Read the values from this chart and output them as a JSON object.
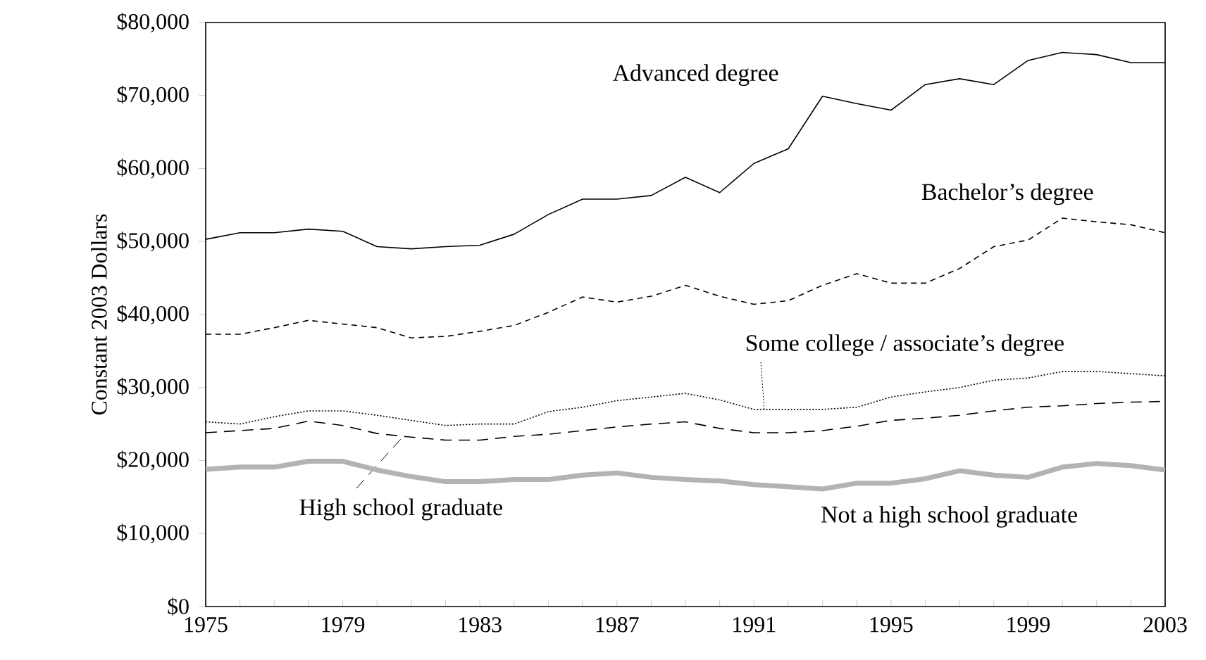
{
  "chart_data": {
    "type": "line",
    "ylabel": "Constant 2003 Dollars",
    "x": [
      1975,
      1976,
      1977,
      1978,
      1979,
      1980,
      1981,
      1982,
      1983,
      1984,
      1985,
      1986,
      1987,
      1988,
      1989,
      1990,
      1991,
      1992,
      1993,
      1994,
      1995,
      1996,
      1997,
      1998,
      1999,
      2000,
      2001,
      2002,
      2003
    ],
    "xlim": [
      1975,
      2003
    ],
    "xticks": [
      1975,
      {
        "value": 1976,
        "label": null
      },
      {
        "value": 1977,
        "label": null
      },
      {
        "value": 1978,
        "label": null
      },
      1979,
      {
        "value": 1980,
        "label": null
      },
      {
        "value": 1981,
        "label": null
      },
      {
        "value": 1982,
        "label": null
      },
      1983,
      {
        "value": 1984,
        "label": null
      },
      {
        "value": 1985,
        "label": null
      },
      {
        "value": 1986,
        "label": null
      },
      1987,
      {
        "value": 1988,
        "label": null
      },
      {
        "value": 1989,
        "label": null
      },
      {
        "value": 1990,
        "label": null
      },
      1991,
      {
        "value": 1992,
        "label": null
      },
      {
        "value": 1993,
        "label": null
      },
      {
        "value": 1994,
        "label": null
      },
      1995,
      {
        "value": 1996,
        "label": null
      },
      {
        "value": 1997,
        "label": null
      },
      {
        "value": 1998,
        "label": null
      },
      1999,
      {
        "value": 2000,
        "label": null
      },
      {
        "value": 2001,
        "label": null
      },
      {
        "value": 2002,
        "label": null
      },
      2003
    ],
    "ylim": [
      0,
      80000
    ],
    "yticks": [
      {
        "value": 0,
        "label": "$0"
      },
      {
        "value": 10000,
        "label": "$10,000"
      },
      {
        "value": 20000,
        "label": "$20,000"
      },
      {
        "value": 30000,
        "label": "$30,000"
      },
      {
        "value": 40000,
        "label": "$40,000"
      },
      {
        "value": 50000,
        "label": "$50,000"
      },
      {
        "value": 60000,
        "label": "$60,000"
      },
      {
        "value": 70000,
        "label": "$70,000"
      },
      {
        "value": 80000,
        "label": "$80,000"
      }
    ],
    "marker": "none",
    "series": [
      {
        "name": "Advanced degree",
        "color": "#000000",
        "line_style": "solid",
        "values": [
          50300,
          51200,
          51200,
          51700,
          51400,
          49300,
          49000,
          49300,
          49500,
          51000,
          53700,
          55800,
          55800,
          56300,
          58800,
          56700,
          60700,
          62700,
          69900,
          68900,
          68000,
          71500,
          72300,
          71500,
          74800,
          75900,
          75600,
          74500,
          74500
        ]
      },
      {
        "name": "Bachelor’s degree",
        "color": "#000000",
        "line_style": "dashed",
        "values": [
          37300,
          37300,
          38200,
          39200,
          38700,
          38200,
          36800,
          37000,
          37700,
          38500,
          40300,
          42400,
          41700,
          42500,
          44000,
          42500,
          41400,
          41900,
          44000,
          45600,
          44300,
          44300,
          46300,
          49300,
          50200,
          53200,
          52700,
          52300,
          51200
        ]
      },
      {
        "name": "Some college / associate’s degree",
        "color": "#000000",
        "line_style": "dotted",
        "values": [
          25300,
          25000,
          26000,
          26800,
          26800,
          26200,
          25500,
          24800,
          25000,
          25000,
          26700,
          27300,
          28200,
          28700,
          29200,
          28300,
          27000,
          27000,
          27000,
          27300,
          28700,
          29400,
          30000,
          31000,
          31300,
          32200,
          32200,
          31900,
          31600
        ]
      },
      {
        "name": "High school graduate",
        "color": "#000000",
        "line_style": "dashed",
        "values": [
          23800,
          24100,
          24400,
          25400,
          24800,
          23700,
          23200,
          22800,
          22800,
          23300,
          23600,
          24100,
          24600,
          25000,
          25300,
          24400,
          23800,
          23800,
          24100,
          24700,
          25500,
          25800,
          26200,
          26800,
          27300,
          27500,
          27800,
          28000,
          28100
        ]
      },
      {
        "name": "Not a high school graduate",
        "color": "#b3b3b3",
        "line_style": "solid",
        "values": [
          18800,
          19100,
          19100,
          19900,
          19900,
          18700,
          17800,
          17100,
          17100,
          17400,
          17400,
          18000,
          18300,
          17700,
          17400,
          17200,
          16700,
          16400,
          16100,
          16900,
          16900,
          17500,
          18600,
          18000,
          17700,
          19100,
          19600,
          19300,
          18700
        ]
      }
    ]
  }
}
